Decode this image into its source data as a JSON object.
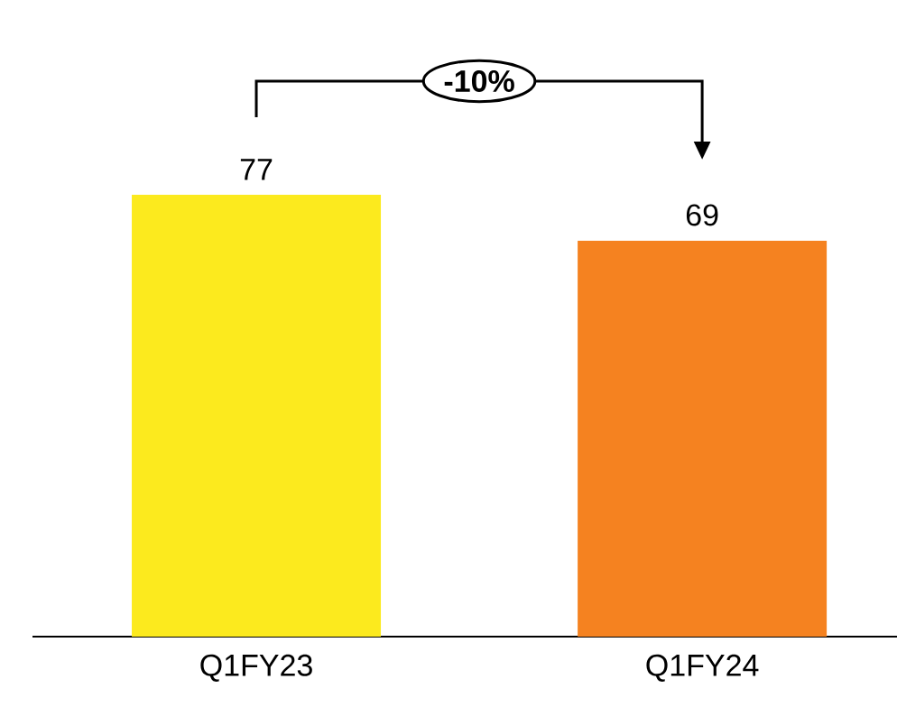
{
  "chart_data": {
    "type": "bar",
    "categories": [
      "Q1FY23",
      "Q1FY24"
    ],
    "values": [
      77,
      69
    ],
    "colors": [
      "#fcea1e",
      "#f58220"
    ],
    "data_labels": true,
    "annotations": [
      "-10%"
    ],
    "grid": false
  }
}
